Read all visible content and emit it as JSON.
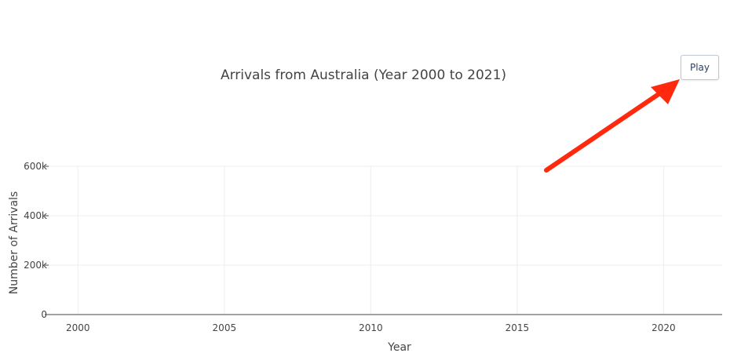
{
  "colors": {
    "grid": "#eeeeee",
    "axis_line": "#444444",
    "text": "#444444",
    "button_border": "#bfc7d2",
    "annotation_arrow": "#ff2a0e"
  },
  "controls": {
    "play_label": "Play"
  },
  "annotation": {
    "type": "arrow",
    "points_to": "play-button",
    "color": "#ff2a0e"
  },
  "chart_data": {
    "type": "line",
    "title": "Arrivals from Australia (Year 2000 to 2021)",
    "xlabel": "Year",
    "ylabel": "Number of Arrivals",
    "xlim": [
      1999,
      2022
    ],
    "ylim": [
      0,
      600000
    ],
    "x_ticks": [
      2000,
      2005,
      2010,
      2015,
      2020
    ],
    "x_tick_labels": [
      "2000",
      "2005",
      "2010",
      "2015",
      "2020"
    ],
    "y_ticks": [
      0,
      200000,
      400000,
      600000
    ],
    "y_tick_labels": [
      "0",
      "200k",
      "400k",
      "600k"
    ],
    "grid": true,
    "series": []
  }
}
